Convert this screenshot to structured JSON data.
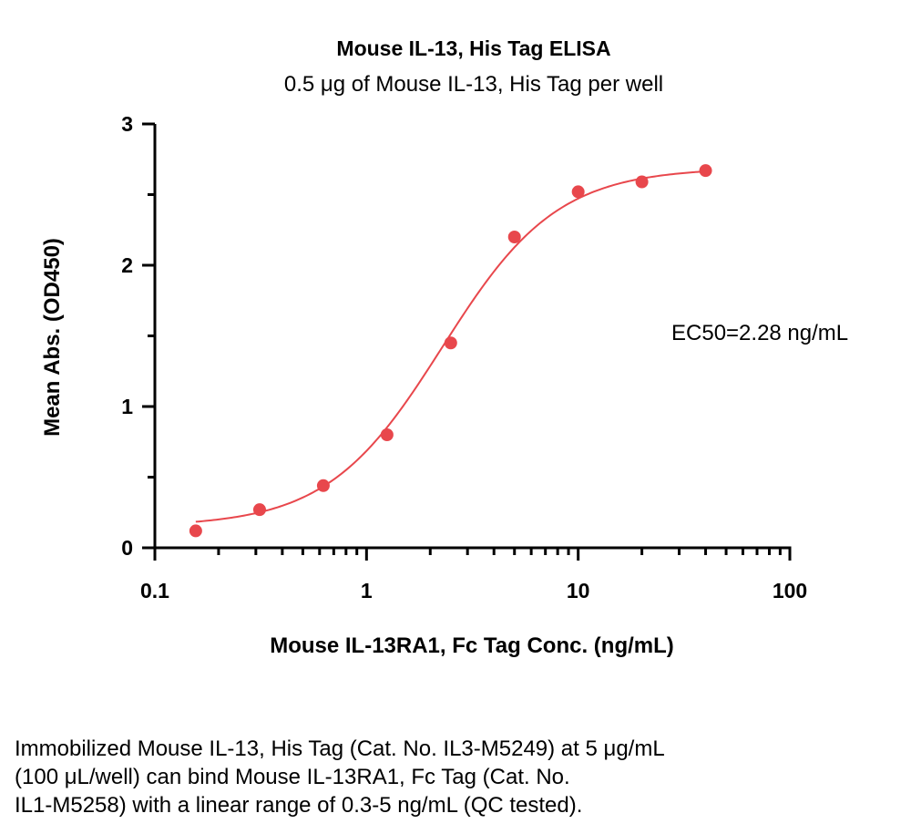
{
  "chart_data": {
    "type": "scatter",
    "title": "Mouse IL-13, His Tag ELISA",
    "subtitle": "0.5 μg of Mouse IL-13, His Tag per well",
    "xlabel": "Mouse IL-13RA1, Fc Tag Conc. (ng/mL)",
    "ylabel": "Mean Abs. (OD450)",
    "x_scale": "log",
    "xlim": [
      0.1,
      100
    ],
    "ylim": [
      0,
      3
    ],
    "x_ticks": [
      "0.1",
      "1",
      "10",
      "100"
    ],
    "y_ticks": [
      "0",
      "1",
      "2",
      "3"
    ],
    "grid": false,
    "annotation": "EC50=2.28 ng/mL",
    "colors": {
      "series": "#e8474c",
      "axis": "#000000"
    },
    "series": [
      {
        "x": [
          0.156,
          0.3125,
          0.625,
          1.25,
          2.5,
          5,
          10,
          20,
          40
        ],
        "y": [
          0.12,
          0.27,
          0.44,
          0.8,
          1.45,
          2.2,
          2.52,
          2.59,
          2.67
        ]
      }
    ],
    "fit": {
      "bottom": 0.15,
      "top": 2.69,
      "ec50": 2.28,
      "hill": 1.6,
      "x_range": [
        0.156,
        40
      ]
    }
  },
  "caption": {
    "lines": [
      "Immobilized Mouse IL-13, His Tag (Cat. No. IL3-M5249) at 5 μg/mL",
      "(100 μL/well) can bind Mouse IL-13RA1, Fc Tag (Cat. No.",
      "IL1-M5258) with a linear range of 0.3-5 ng/mL (QC tested)."
    ]
  }
}
